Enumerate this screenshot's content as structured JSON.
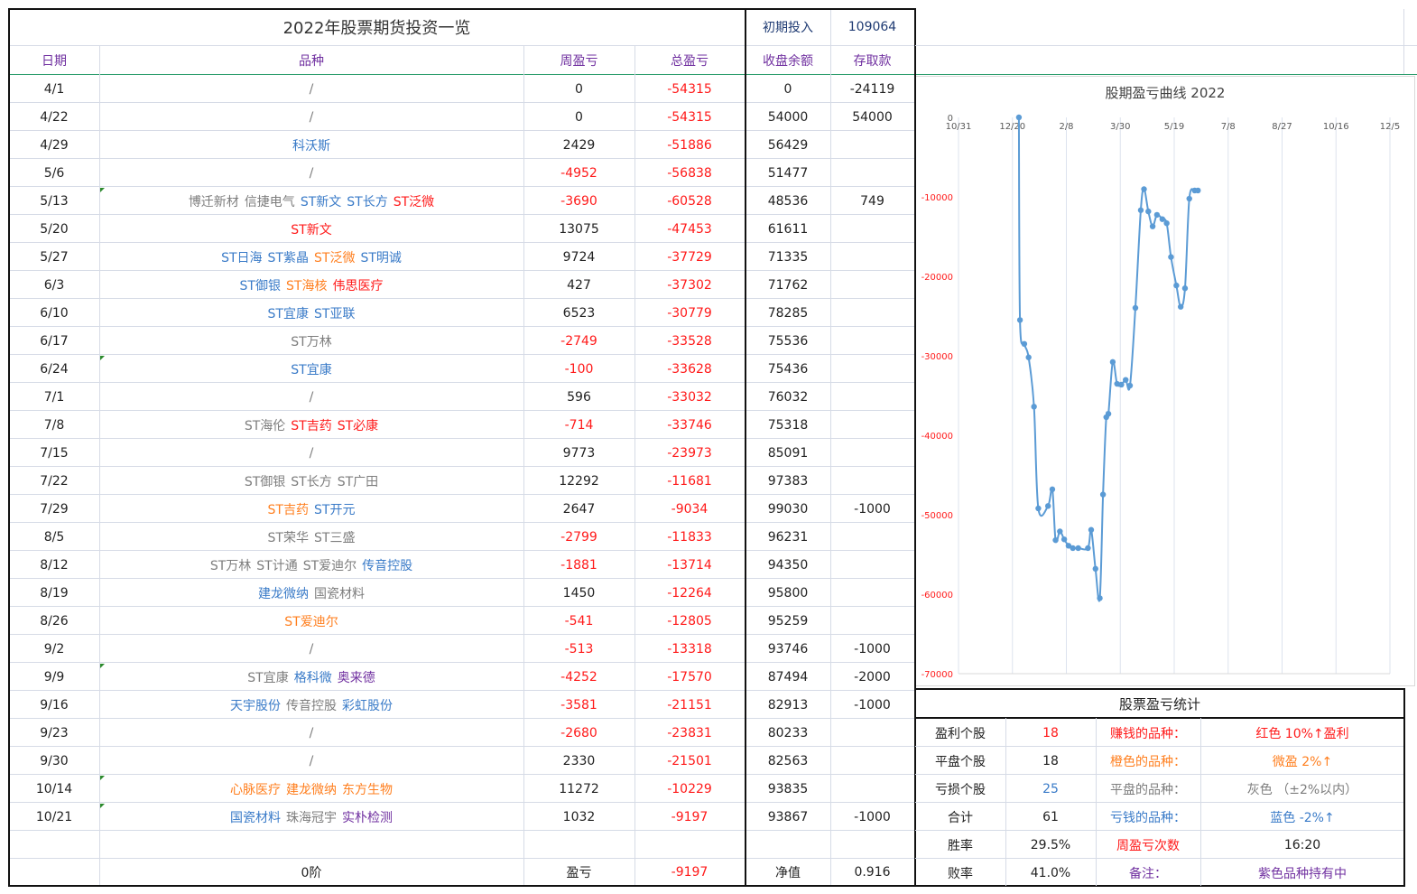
{
  "title": "2022年股票期货投资一览",
  "initial": {
    "label": "初期投入",
    "value": "109064"
  },
  "headers": [
    "日期",
    "品种",
    "周盈亏",
    "总盈亏",
    "收盘余额",
    "存取款"
  ],
  "colors": {
    "red": "#ff1a1a",
    "orange": "#ff7f1f",
    "gray": "#7d7d7d",
    "blue": "#3a7bc8",
    "purple": "#7030a0",
    "line": "#5b9bd5"
  },
  "rows": [
    {
      "date": "4/1",
      "items": [
        {
          "t": "/",
          "c": "gray"
        }
      ],
      "week": "0",
      "total": "-54315",
      "balance": "0",
      "deposit": "-24119",
      "flag": false
    },
    {
      "date": "4/22",
      "items": [
        {
          "t": "/",
          "c": "gray"
        }
      ],
      "week": "0",
      "total": "-54315",
      "balance": "54000",
      "deposit": "54000",
      "flag": false
    },
    {
      "date": "4/29",
      "items": [
        {
          "t": "科沃斯",
          "c": "blue"
        }
      ],
      "week": "2429",
      "total": "-51886",
      "balance": "56429",
      "deposit": "",
      "flag": false
    },
    {
      "date": "5/6",
      "items": [
        {
          "t": "/",
          "c": "gray"
        }
      ],
      "week": "-4952",
      "total": "-56838",
      "balance": "51477",
      "deposit": "",
      "flag": false
    },
    {
      "date": "5/13",
      "items": [
        {
          "t": "博迁新材",
          "c": "gray"
        },
        {
          "t": "信捷电气",
          "c": "gray"
        },
        {
          "t": "ST新文",
          "c": "blue"
        },
        {
          "t": "ST长方",
          "c": "blue"
        },
        {
          "t": "ST泛微",
          "c": "red"
        }
      ],
      "week": "-3690",
      "total": "-60528",
      "balance": "48536",
      "deposit": "749",
      "flag": true
    },
    {
      "date": "5/20",
      "items": [
        {
          "t": "ST新文",
          "c": "red"
        }
      ],
      "week": "13075",
      "total": "-47453",
      "balance": "61611",
      "deposit": "",
      "flag": false
    },
    {
      "date": "5/27",
      "items": [
        {
          "t": "ST日海",
          "c": "blue"
        },
        {
          "t": "ST紫晶",
          "c": "blue"
        },
        {
          "t": "ST泛微",
          "c": "orange"
        },
        {
          "t": "ST明诚",
          "c": "blue"
        }
      ],
      "week": "9724",
      "total": "-37729",
      "balance": "71335",
      "deposit": "",
      "flag": false
    },
    {
      "date": "6/3",
      "items": [
        {
          "t": "ST御银",
          "c": "blue"
        },
        {
          "t": "ST海核",
          "c": "orange"
        },
        {
          "t": "伟思医疗",
          "c": "red"
        }
      ],
      "week": "427",
      "total": "-37302",
      "balance": "71762",
      "deposit": "",
      "flag": false
    },
    {
      "date": "6/10",
      "items": [
        {
          "t": "ST宜康",
          "c": "blue"
        },
        {
          "t": "ST亚联",
          "c": "blue"
        }
      ],
      "week": "6523",
      "total": "-30779",
      "balance": "78285",
      "deposit": "",
      "flag": false
    },
    {
      "date": "6/17",
      "items": [
        {
          "t": "ST万林",
          "c": "gray"
        }
      ],
      "week": "-2749",
      "total": "-33528",
      "balance": "75536",
      "deposit": "",
      "flag": false
    },
    {
      "date": "6/24",
      "items": [
        {
          "t": "ST宜康",
          "c": "blue"
        }
      ],
      "week": "-100",
      "total": "-33628",
      "balance": "75436",
      "deposit": "",
      "flag": true
    },
    {
      "date": "7/1",
      "items": [
        {
          "t": "/",
          "c": "gray"
        }
      ],
      "week": "596",
      "total": "-33032",
      "balance": "76032",
      "deposit": "",
      "flag": false
    },
    {
      "date": "7/8",
      "items": [
        {
          "t": "ST海伦",
          "c": "gray"
        },
        {
          "t": "ST吉药",
          "c": "red"
        },
        {
          "t": "ST必康",
          "c": "red"
        }
      ],
      "week": "-714",
      "total": "-33746",
      "balance": "75318",
      "deposit": "",
      "flag": false
    },
    {
      "date": "7/15",
      "items": [
        {
          "t": "/",
          "c": "gray"
        }
      ],
      "week": "9773",
      "total": "-23973",
      "balance": "85091",
      "deposit": "",
      "flag": false
    },
    {
      "date": "7/22",
      "items": [
        {
          "t": "ST御银",
          "c": "gray"
        },
        {
          "t": "ST长方",
          "c": "gray"
        },
        {
          "t": "ST广田",
          "c": "gray"
        }
      ],
      "week": "12292",
      "total": "-11681",
      "balance": "97383",
      "deposit": "",
      "flag": false
    },
    {
      "date": "7/29",
      "items": [
        {
          "t": "ST吉药",
          "c": "orange"
        },
        {
          "t": "ST开元",
          "c": "blue"
        }
      ],
      "week": "2647",
      "total": "-9034",
      "balance": "99030",
      "deposit": "-1000",
      "flag": false
    },
    {
      "date": "8/5",
      "items": [
        {
          "t": "ST荣华",
          "c": "gray"
        },
        {
          "t": "ST三盛",
          "c": "gray"
        }
      ],
      "week": "-2799",
      "total": "-11833",
      "balance": "96231",
      "deposit": "",
      "flag": false
    },
    {
      "date": "8/12",
      "items": [
        {
          "t": "ST万林",
          "c": "gray"
        },
        {
          "t": "ST计通",
          "c": "gray"
        },
        {
          "t": "ST爱迪尔",
          "c": "gray"
        },
        {
          "t": "传音控股",
          "c": "blue"
        }
      ],
      "week": "-1881",
      "total": "-13714",
      "balance": "94350",
      "deposit": "",
      "flag": false
    },
    {
      "date": "8/19",
      "items": [
        {
          "t": "建龙微纳",
          "c": "blue"
        },
        {
          "t": "国瓷材料",
          "c": "gray"
        }
      ],
      "week": "1450",
      "total": "-12264",
      "balance": "95800",
      "deposit": "",
      "flag": false
    },
    {
      "date": "8/26",
      "items": [
        {
          "t": "ST爱迪尔",
          "c": "orange"
        }
      ],
      "week": "-541",
      "total": "-12805",
      "balance": "95259",
      "deposit": "",
      "flag": false
    },
    {
      "date": "9/2",
      "items": [
        {
          "t": "/",
          "c": "gray"
        }
      ],
      "week": "-513",
      "total": "-13318",
      "balance": "93746",
      "deposit": "-1000",
      "flag": false
    },
    {
      "date": "9/9",
      "items": [
        {
          "t": "ST宜康",
          "c": "gray"
        },
        {
          "t": "格科微",
          "c": "blue"
        },
        {
          "t": "奥来德",
          "c": "purple"
        }
      ],
      "week": "-4252",
      "total": "-17570",
      "balance": "87494",
      "deposit": "-2000",
      "flag": true
    },
    {
      "date": "9/16",
      "items": [
        {
          "t": "天宇股份",
          "c": "blue"
        },
        {
          "t": "传音控股",
          "c": "gray"
        },
        {
          "t": "彩虹股份",
          "c": "blue"
        }
      ],
      "week": "-3581",
      "total": "-21151",
      "balance": "82913",
      "deposit": "-1000",
      "flag": false
    },
    {
      "date": "9/23",
      "items": [
        {
          "t": "/",
          "c": "gray"
        }
      ],
      "week": "-2680",
      "total": "-23831",
      "balance": "80233",
      "deposit": "",
      "flag": false
    },
    {
      "date": "9/30",
      "items": [
        {
          "t": "/",
          "c": "gray"
        }
      ],
      "week": "2330",
      "total": "-21501",
      "balance": "82563",
      "deposit": "",
      "flag": false
    },
    {
      "date": "10/14",
      "items": [
        {
          "t": "心脉医疗",
          "c": "orange"
        },
        {
          "t": "建龙微纳",
          "c": "orange"
        },
        {
          "t": "东方生物",
          "c": "orange"
        }
      ],
      "week": "11272",
      "total": "-10229",
      "balance": "93835",
      "deposit": "",
      "flag": true
    },
    {
      "date": "10/21",
      "items": [
        {
          "t": "国瓷材料",
          "c": "blue"
        },
        {
          "t": "珠海冠宇",
          "c": "gray"
        },
        {
          "t": "实朴检测",
          "c": "purple"
        }
      ],
      "week": "1032",
      "total": "-9197",
      "balance": "93867",
      "deposit": "-1000",
      "flag": true
    }
  ],
  "footer": {
    "level": "0阶",
    "pl_label": "盈亏",
    "pl_value": "-9197",
    "nav_label": "净值",
    "nav_value": "0.916"
  },
  "stats": {
    "title": "股票盈亏统计",
    "rows": [
      {
        "label": "盈利个股",
        "value": "18",
        "vcolor": "red",
        "key": "赚钱的品种：",
        "kcolor": "red",
        "desc": "红色  10%↑盈利",
        "dcolor": "red"
      },
      {
        "label": "平盘个股",
        "value": "18",
        "vcolor": "dark",
        "key": "橙色的品种：",
        "kcolor": "orange",
        "desc": "微盈  2%↑",
        "dcolor": "orange"
      },
      {
        "label": "亏损个股",
        "value": "25",
        "vcolor": "blue",
        "key": "平盘的品种：",
        "kcolor": "gray",
        "desc": "灰色  （±2%以内）",
        "dcolor": "gray"
      },
      {
        "label": "合计",
        "value": "61",
        "vcolor": "dark",
        "key": "亏钱的品种：",
        "kcolor": "blue",
        "desc": "蓝色  -2%↑",
        "dcolor": "blue"
      },
      {
        "label": "胜率",
        "value": "29.5%",
        "vcolor": "dark",
        "key": "周盈亏次数",
        "kcolor": "red",
        "desc": "16:20",
        "dcolor": "dark"
      },
      {
        "label": "败率",
        "value": "41.0%",
        "vcolor": "dark",
        "key": "备注：",
        "kcolor": "purple",
        "desc": "紫色品种持有中",
        "dcolor": "purple"
      }
    ]
  },
  "chart_data": {
    "type": "line",
    "title": "股期盈亏曲线 2022",
    "x_ticks": [
      "10/31",
      "12/20",
      "2/8",
      "3/30",
      "5/19",
      "7/8",
      "8/27",
      "10/16",
      "12/5"
    ],
    "y_ticks": [
      "0",
      "-10000",
      "-20000",
      "-30000",
      "-40000",
      "-50000",
      "-60000",
      "-70000"
    ],
    "xlim": [
      0,
      400
    ],
    "ylim": [
      -70000,
      0
    ],
    "grid": true,
    "x": [
      56,
      57,
      61,
      65,
      70,
      74,
      83,
      87,
      90,
      94,
      98,
      102,
      106,
      111,
      120,
      123,
      127,
      131,
      134,
      137,
      139,
      143,
      147,
      151,
      155,
      159,
      164,
      169,
      172,
      176,
      180,
      184,
      189,
      193,
      197,
      202,
      206,
      210,
      214,
      219,
      222
    ],
    "y": [
      0,
      -25500,
      -28500,
      -30200,
      -36400,
      -49200,
      -48900,
      -46800,
      -53200,
      -52100,
      -53100,
      -53900,
      -54200,
      -54200,
      -54200,
      -51900,
      -56800,
      -60500,
      -47453,
      -37729,
      -37302,
      -30779,
      -33528,
      -33628,
      -33032,
      -33746,
      -23973,
      -11681,
      -9034,
      -11833,
      -13714,
      -12264,
      -12805,
      -13318,
      -17570,
      -21151,
      -23831,
      -21501,
      -10229,
      -9197,
      -9197
    ]
  }
}
